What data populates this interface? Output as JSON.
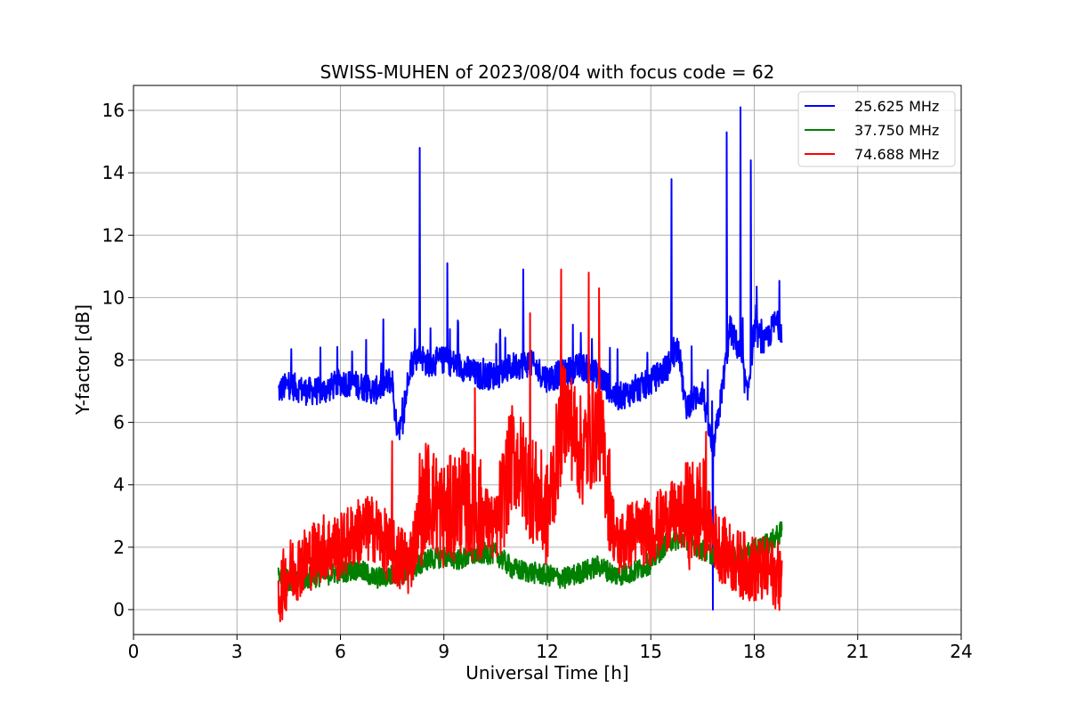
{
  "chart_data": {
    "type": "line",
    "title": "SWISS-MUHEN of 2023/08/04 with focus code = 62",
    "xlabel": "Universal Time [h]",
    "ylabel": "Y-factor [dB]",
    "xlim": [
      0,
      24
    ],
    "ylim": [
      -0.8,
      16.8
    ],
    "xticks": [
      "0",
      "3",
      "6",
      "9",
      "12",
      "15",
      "18",
      "21",
      "24"
    ],
    "yticks": [
      "0",
      "2",
      "4",
      "6",
      "8",
      "10",
      "12",
      "14",
      "16"
    ],
    "grid": true,
    "legend_position": "top-right",
    "series": [
      {
        "name": "25.625 MHz",
        "color": "#0000ff",
        "x": [
          4.2,
          4.5,
          5.0,
          5.5,
          6.0,
          6.5,
          7.0,
          7.5,
          7.6,
          7.8,
          8.0,
          8.3,
          8.5,
          9.0,
          9.5,
          10.0,
          10.5,
          11.0,
          11.5,
          12.0,
          12.5,
          13.0,
          13.5,
          14.0,
          14.5,
          15.0,
          15.5,
          15.8,
          16.0,
          16.5,
          16.8,
          17.0,
          17.3,
          17.6,
          17.8,
          18.0,
          18.3,
          18.6,
          18.8
        ],
        "y": [
          7.0,
          7.2,
          7.0,
          7.0,
          7.3,
          7.2,
          7.0,
          7.4,
          6.0,
          5.8,
          7.8,
          8.2,
          7.9,
          8.0,
          7.8,
          7.5,
          7.5,
          7.8,
          7.9,
          7.4,
          7.6,
          7.8,
          7.5,
          6.8,
          7.0,
          7.3,
          7.8,
          8.5,
          6.5,
          7.0,
          5.0,
          6.5,
          9.0,
          8.2,
          6.8,
          9.0,
          8.5,
          9.2,
          9.0
        ],
        "peaks": [
          [
            8.3,
            14.8
          ],
          [
            9.1,
            11.1
          ],
          [
            11.3,
            10.9
          ],
          [
            15.6,
            13.8
          ],
          [
            17.2,
            15.3
          ],
          [
            17.6,
            16.1
          ],
          [
            17.9,
            14.4
          ],
          [
            16.8,
            0.0
          ]
        ]
      },
      {
        "name": "37.750 MHz",
        "color": "#008000",
        "x": [
          4.2,
          4.5,
          5.0,
          5.5,
          6.0,
          6.5,
          7.0,
          7.5,
          8.0,
          8.5,
          9.0,
          9.5,
          10.0,
          10.5,
          11.0,
          11.5,
          12.0,
          12.5,
          13.0,
          13.5,
          14.0,
          14.5,
          15.0,
          15.5,
          16.0,
          16.5,
          17.0,
          17.5,
          18.0,
          18.5,
          18.8
        ],
        "y": [
          1.2,
          0.9,
          1.0,
          1.1,
          1.2,
          1.3,
          1.0,
          1.1,
          1.2,
          1.6,
          1.7,
          1.6,
          1.8,
          1.8,
          1.3,
          1.2,
          1.1,
          1.0,
          1.2,
          1.4,
          1.1,
          1.2,
          1.5,
          2.2,
          2.3,
          1.9,
          1.7,
          1.7,
          1.9,
          2.2,
          2.5
        ]
      },
      {
        "name": "74.688 MHz",
        "color": "#ff0000",
        "x": [
          4.2,
          4.5,
          5.0,
          5.5,
          6.0,
          6.5,
          7.0,
          7.5,
          8.0,
          8.5,
          9.0,
          9.5,
          10.0,
          10.5,
          11.0,
          11.5,
          12.0,
          12.5,
          13.0,
          13.5,
          14.0,
          14.5,
          15.0,
          15.5,
          16.0,
          16.5,
          17.0,
          17.5,
          18.0,
          18.5,
          18.8
        ],
        "y": [
          0.5,
          1.2,
          1.6,
          2.0,
          2.0,
          2.5,
          2.6,
          1.8,
          1.5,
          3.8,
          3.0,
          3.5,
          3.2,
          2.5,
          5.0,
          4.0,
          3.0,
          6.5,
          5.0,
          6.0,
          2.0,
          2.5,
          2.5,
          3.0,
          3.0,
          3.2,
          2.0,
          1.5,
          1.3,
          1.2,
          1.0
        ],
        "peaks": [
          [
            7.5,
            5.4
          ],
          [
            8.3,
            5.0
          ],
          [
            11.5,
            9.5
          ],
          [
            12.4,
            10.9
          ],
          [
            13.2,
            10.8
          ],
          [
            13.5,
            10.3
          ],
          [
            16.6,
            5.7
          ],
          [
            9.9,
            7.1
          ]
        ]
      }
    ]
  }
}
